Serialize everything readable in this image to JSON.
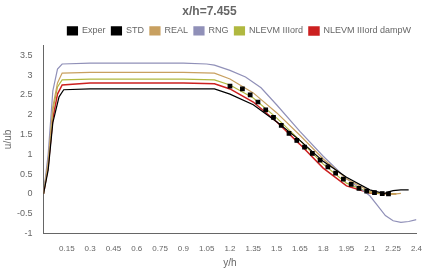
{
  "chart_data": {
    "type": "line",
    "title": "x/h=7.455",
    "x_label": "y/h",
    "y_label": "u/ub",
    "xlim": [
      0.0,
      2.4
    ],
    "ylim": [
      -1.0,
      3.75
    ],
    "xticks": [
      0.15,
      0.3,
      0.45,
      0.6,
      0.75,
      0.9,
      1.05,
      1.2,
      1.35,
      1.5,
      1.65,
      1.8,
      1.95,
      2.1,
      2.25,
      2.4
    ],
    "yticks": [
      -1.0,
      -0.5,
      0.0,
      0.5,
      1.0,
      1.5,
      2.0,
      2.5,
      3.0,
      3.5
    ],
    "grid": false,
    "legend": "upper right",
    "series": [
      {
        "name": "Exper",
        "type": "scatter",
        "marker": "square",
        "color": "#000000",
        "x": [
          1.2,
          1.28,
          1.33,
          1.38,
          1.43,
          1.48,
          1.53,
          1.58,
          1.63,
          1.68,
          1.73,
          1.78,
          1.83,
          1.88,
          1.93,
          1.98,
          2.03,
          2.08,
          2.13,
          2.18,
          2.22
        ],
        "values": [
          2.72,
          2.65,
          2.5,
          2.32,
          2.12,
          1.93,
          1.73,
          1.53,
          1.35,
          1.18,
          1.02,
          0.85,
          0.68,
          0.52,
          0.37,
          0.24,
          0.14,
          0.07,
          0.03,
          0.005,
          0.0
        ]
      },
      {
        "name": "STD",
        "type": "line",
        "color": "#000000",
        "x": [
          0.0,
          0.03,
          0.06,
          0.1,
          0.13,
          0.3,
          0.6,
          0.9,
          1.1,
          1.2,
          1.35,
          1.5,
          1.65,
          1.8,
          1.95,
          2.1,
          2.18,
          2.19,
          2.22,
          2.25,
          2.3,
          2.35
        ],
        "values": [
          0.0,
          0.6,
          1.8,
          2.45,
          2.63,
          2.65,
          2.65,
          2.65,
          2.65,
          2.52,
          2.25,
          1.82,
          1.35,
          0.82,
          0.42,
          0.1,
          0.02,
          0.0,
          0.05,
          0.08,
          0.1,
          0.1
        ]
      },
      {
        "name": "REAL",
        "type": "line",
        "color": "#c8a060",
        "x": [
          0.0,
          0.03,
          0.06,
          0.09,
          0.12,
          0.3,
          0.6,
          0.9,
          1.1,
          1.2,
          1.35,
          1.5,
          1.65,
          1.8,
          1.95,
          2.1,
          2.18,
          2.22,
          2.27,
          2.3
        ],
        "values": [
          0.0,
          0.8,
          2.2,
          2.8,
          3.05,
          3.07,
          3.07,
          3.07,
          3.05,
          2.9,
          2.55,
          2.05,
          1.48,
          0.88,
          0.38,
          0.06,
          0.01,
          0.0,
          0.0,
          0.01
        ]
      },
      {
        "name": "RNG",
        "type": "line",
        "color": "#9090b8",
        "x": [
          0.0,
          0.03,
          0.06,
          0.09,
          0.12,
          0.3,
          0.6,
          0.9,
          1.05,
          1.1,
          1.2,
          1.3,
          1.4,
          1.5,
          1.65,
          1.8,
          1.95,
          2.05,
          2.1,
          2.15,
          2.2,
          2.25,
          2.3,
          2.35,
          2.4
        ],
        "values": [
          0.0,
          1.0,
          2.6,
          3.15,
          3.28,
          3.3,
          3.3,
          3.3,
          3.28,
          3.25,
          3.12,
          2.95,
          2.68,
          2.25,
          1.58,
          0.95,
          0.38,
          0.1,
          -0.05,
          -0.3,
          -0.55,
          -0.68,
          -0.72,
          -0.7,
          -0.65
        ]
      },
      {
        "name": "NLEVM IIIord",
        "type": "line",
        "color": "#b0b840",
        "x": [
          0.0,
          0.03,
          0.06,
          0.09,
          0.12,
          0.3,
          0.6,
          0.9,
          1.1,
          1.2,
          1.35,
          1.5,
          1.65,
          1.8,
          1.95,
          2.1,
          2.18,
          2.22,
          2.27
        ],
        "values": [
          0.0,
          0.8,
          2.1,
          2.7,
          2.88,
          2.9,
          2.9,
          2.9,
          2.88,
          2.75,
          2.42,
          1.92,
          1.35,
          0.75,
          0.27,
          0.03,
          0.005,
          0.0,
          0.0
        ]
      },
      {
        "name": "NLEVM IIIord dampW",
        "type": "line",
        "color": "#cc2020",
        "x": [
          0.0,
          0.03,
          0.06,
          0.09,
          0.12,
          0.3,
          0.6,
          0.9,
          1.1,
          1.2,
          1.35,
          1.5,
          1.65,
          1.8,
          1.95,
          2.1,
          2.18,
          2.22,
          2.27
        ],
        "values": [
          0.0,
          0.7,
          1.9,
          2.52,
          2.75,
          2.8,
          2.8,
          2.8,
          2.78,
          2.65,
          2.32,
          1.82,
          1.25,
          0.65,
          0.2,
          0.02,
          0.005,
          0.0,
          0.0
        ]
      }
    ]
  }
}
